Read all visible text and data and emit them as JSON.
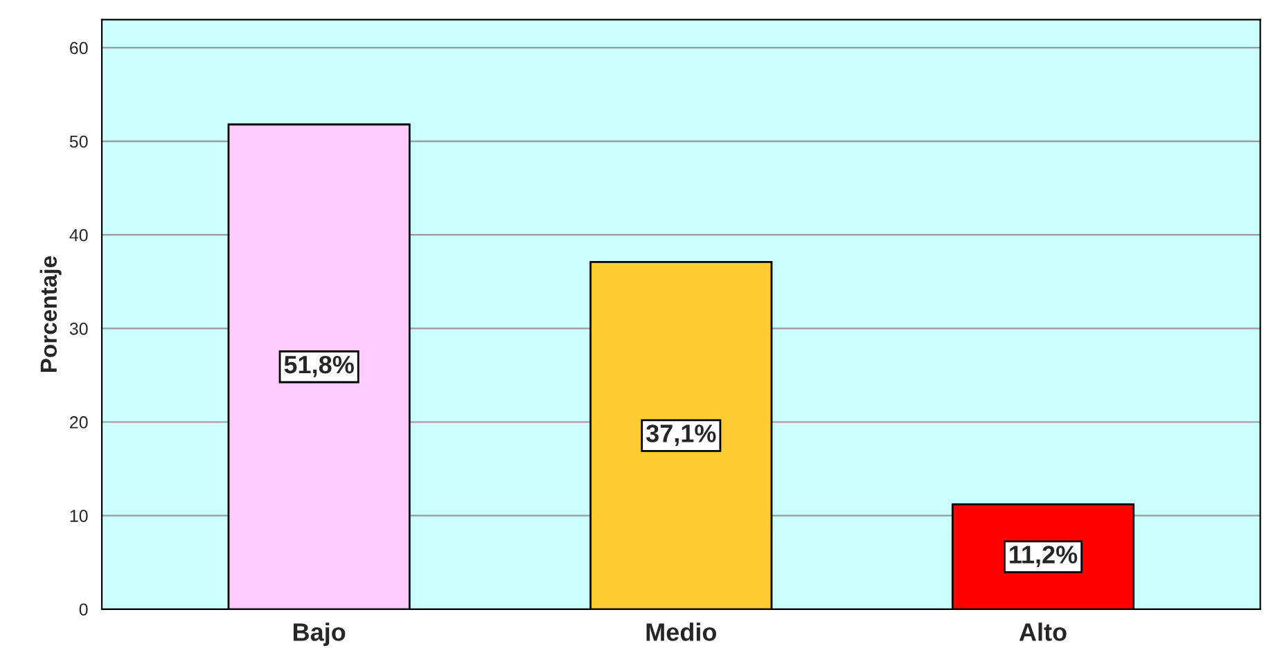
{
  "chart_data": {
    "type": "bar",
    "ylabel": "Porcentaje",
    "categories": [
      "Bajo",
      "Medio",
      "Alto"
    ],
    "values": [
      51.8,
      37.1,
      11.2
    ],
    "colors": [
      "#ffccff",
      "#ffcc33",
      "#ff0000"
    ],
    "value_labels": [
      "51,8%",
      "37,1%",
      "11,2%"
    ],
    "ylim": [
      0,
      63
    ],
    "yticks": [
      0,
      10,
      20,
      30,
      40,
      50,
      60
    ],
    "grid": "y"
  }
}
